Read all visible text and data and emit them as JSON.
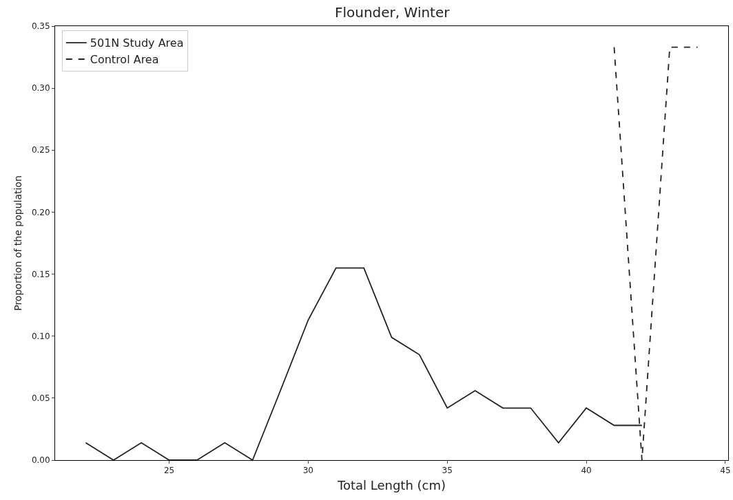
{
  "chart_data": {
    "type": "line",
    "title": "Flounder, Winter",
    "xlabel": "Total Length (cm)",
    "ylabel": "Proportion of the population",
    "series": [
      {
        "name": "501N Study Area",
        "color": "#222222",
        "line_style": "solid",
        "x": [
          22,
          23,
          24,
          25,
          26,
          27,
          28,
          29,
          30,
          31,
          32,
          33,
          34,
          35,
          36,
          37,
          38,
          39,
          40,
          41,
          42
        ],
        "values": [
          0.014,
          0,
          0.014,
          0,
          0,
          0.014,
          0,
          0.056,
          0.113,
          0.155,
          0.155,
          0.099,
          0.085,
          0.042,
          0.056,
          0.042,
          0.042,
          0.014,
          0.042,
          0.028,
          0.028
        ]
      },
      {
        "name": "Control Area",
        "color": "#222222",
        "line_style": "dashed",
        "x": [
          41,
          42,
          43,
          44
        ],
        "values": [
          0.333,
          0,
          0.333,
          0.333
        ]
      }
    ],
    "xlim": [
      20.9,
      45.1
    ],
    "xticks": [
      25,
      30,
      35,
      40,
      45
    ],
    "ylim": [
      0,
      0.35
    ],
    "yticks": [
      {
        "value": 0,
        "label": "0.00"
      },
      {
        "value": 0.05,
        "label": "0.05"
      },
      {
        "value": 0.1,
        "label": "0.10"
      },
      {
        "value": 0.15,
        "label": "0.15"
      },
      {
        "value": 0.2,
        "label": "0.20"
      },
      {
        "value": 0.25,
        "label": "0.25"
      },
      {
        "value": 0.3,
        "label": "0.30"
      },
      {
        "value": 0.35,
        "label": "0.35"
      }
    ],
    "grid": false,
    "legend": "top left",
    "marker": "none"
  }
}
